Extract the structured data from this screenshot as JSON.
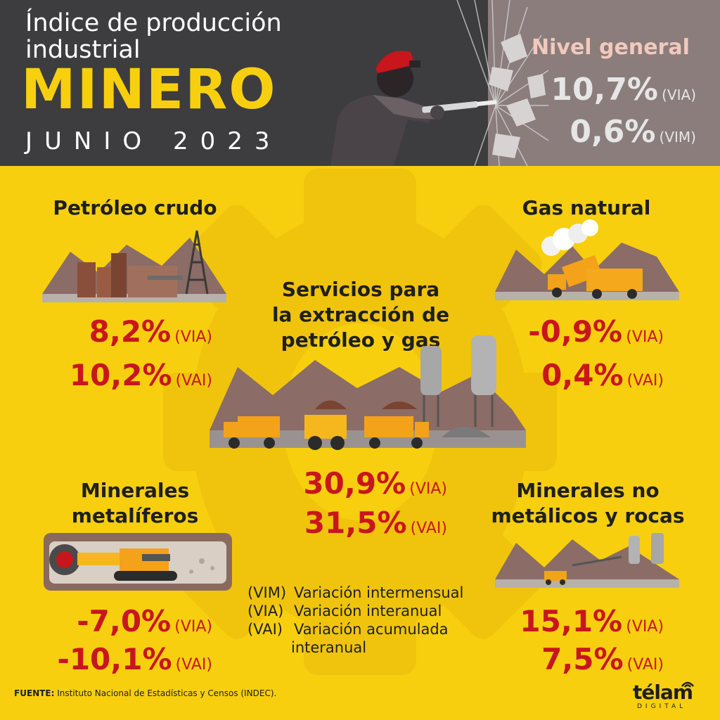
{
  "header": {
    "title_line1": "Índice de producción",
    "title_line2": "industrial",
    "title_main": "MINERO",
    "period": "JUNIO 2023",
    "nivel_general": {
      "label": "Nivel general",
      "via_value": "10,7%",
      "via_abbr": "(VIA)",
      "vim_value": "0,6%",
      "vim_abbr": "(VIM)"
    }
  },
  "sections": {
    "petroleo": {
      "title": "Petróleo crudo",
      "via_value": "8,2%",
      "via_abbr": "(VIA)",
      "vai_value": "10,2%",
      "vai_abbr": "(VAI)"
    },
    "gas": {
      "title": "Gas natural",
      "via_value": "-0,9%",
      "via_abbr": "(VIA)",
      "vai_value": "0,4%",
      "vai_abbr": "(VAI)"
    },
    "servicios": {
      "title_line1": "Servicios para",
      "title_line2": "la extracción de",
      "title_line3": "petróleo y gas",
      "via_value": "30,9%",
      "via_abbr": "(VIA)",
      "vai_value": "31,5%",
      "vai_abbr": "(VAI)"
    },
    "metaliferos": {
      "title_line1": "Minerales",
      "title_line2": "metalíferos",
      "via_value": "-7,0%",
      "via_abbr": "(VIA)",
      "vai_value": "-10,1%",
      "vai_abbr": "(VAI)"
    },
    "no_metalicos": {
      "title_line1": "Minerales no",
      "title_line2": "metálicos y rocas",
      "via_value": "15,1%",
      "via_abbr": "(VIA)",
      "vai_value": "7,5%",
      "vai_abbr": "(VAI)"
    }
  },
  "legend": {
    "vim_code": "(VIM)",
    "vim_text": "Variación intermensual",
    "via_code": "(VIA)",
    "via_text": "Variación interanual",
    "vai_code": "(VAI)",
    "vai_text": "Variación acumulada",
    "vai_text_cont": "interanual"
  },
  "footer": {
    "source_label": "FUENTE:",
    "source_text": "Instituto Nacional de Estadísticas y Censos (INDEC).",
    "logo_text": "télam",
    "logo_sub": "DIGITAL"
  },
  "colors": {
    "background": "#f7cf0f",
    "header_dark": "#3d3c3f",
    "header_panel": "#8a7d7c",
    "value_red": "#c8161c",
    "accent_yellow": "#f7cf0f"
  },
  "icons": [
    "miner-illustration",
    "oil-field-illustration",
    "gas-trucks-illustration",
    "extraction-services-illustration",
    "metal-mining-tunnel-illustration",
    "non-metal-quarry-illustration",
    "gear-background-icon",
    "signal-icon"
  ]
}
